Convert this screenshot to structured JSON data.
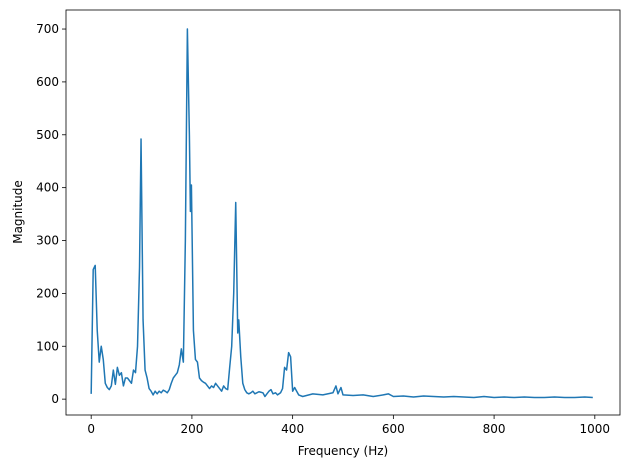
{
  "chart_data": {
    "type": "line",
    "xlabel": "Frequency (Hz)",
    "ylabel": "Magnitude",
    "color": "#1f77b4",
    "xlim": [
      -50,
      1050
    ],
    "ylim": [
      -30,
      736
    ],
    "xticks": [
      0,
      200,
      400,
      600,
      800,
      1000
    ],
    "yticks": [
      0,
      100,
      200,
      300,
      400,
      500,
      600,
      700
    ],
    "x": [
      0,
      4,
      8,
      12,
      16,
      20,
      24,
      28,
      32,
      36,
      40,
      44,
      48,
      52,
      56,
      60,
      64,
      68,
      72,
      76,
      80,
      84,
      88,
      92,
      96,
      99,
      103,
      107,
      111,
      115,
      119,
      123,
      127,
      131,
      135,
      139,
      143,
      147,
      151,
      155,
      159,
      163,
      167,
      171,
      175,
      179,
      183,
      187,
      191,
      195,
      197,
      199,
      203,
      207,
      211,
      215,
      219,
      223,
      227,
      231,
      235,
      239,
      243,
      247,
      251,
      255,
      259,
      263,
      267,
      271,
      275,
      279,
      283,
      287,
      291,
      293,
      297,
      301,
      305,
      309,
      313,
      317,
      321,
      325,
      329,
      333,
      337,
      341,
      345,
      349,
      353,
      357,
      361,
      366,
      370,
      376,
      380,
      384,
      388,
      392,
      396,
      400,
      404,
      408,
      412,
      420,
      440,
      460,
      480,
      486,
      490,
      496,
      500,
      520,
      540,
      560,
      580,
      590,
      600,
      620,
      640,
      660,
      680,
      700,
      720,
      740,
      760,
      780,
      800,
      820,
      840,
      860,
      880,
      900,
      920,
      940,
      960,
      980,
      996
    ],
    "values": [
      10,
      245,
      253,
      130,
      70,
      100,
      75,
      30,
      22,
      18,
      25,
      55,
      28,
      60,
      45,
      50,
      25,
      40,
      40,
      35,
      30,
      55,
      50,
      100,
      250,
      492,
      150,
      55,
      40,
      20,
      15,
      8,
      15,
      10,
      15,
      12,
      17,
      15,
      12,
      18,
      30,
      40,
      45,
      50,
      65,
      95,
      70,
      300,
      700,
      500,
      355,
      405,
      130,
      75,
      70,
      40,
      35,
      32,
      30,
      25,
      20,
      25,
      22,
      30,
      25,
      20,
      15,
      25,
      20,
      18,
      60,
      100,
      200,
      372,
      125,
      150,
      80,
      30,
      18,
      12,
      10,
      12,
      15,
      10,
      12,
      14,
      13,
      12,
      5,
      10,
      15,
      18,
      10,
      12,
      8,
      12,
      20,
      60,
      55,
      88,
      80,
      15,
      22,
      15,
      8,
      5,
      10,
      8,
      12,
      25,
      10,
      22,
      8,
      7,
      8,
      5,
      8,
      10,
      5,
      6,
      4,
      6,
      5,
      4,
      5,
      4,
      3,
      5,
      3,
      4,
      3,
      4,
      3,
      3,
      4,
      3,
      3,
      4,
      3
    ]
  }
}
